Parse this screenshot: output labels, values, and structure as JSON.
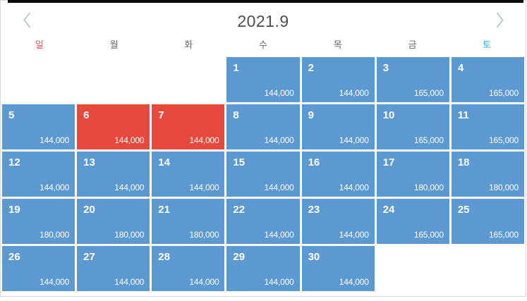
{
  "header": {
    "title": "2021.9",
    "prev_icon": "chevron-left",
    "next_icon": "chevron-right"
  },
  "weekdays": [
    {
      "label": "일",
      "color": "#ef4e5b"
    },
    {
      "label": "월",
      "color": "#666666"
    },
    {
      "label": "화",
      "color": "#666666"
    },
    {
      "label": "수",
      "color": "#666666"
    },
    {
      "label": "목",
      "color": "#666666"
    },
    {
      "label": "금",
      "color": "#666666"
    },
    {
      "label": "토",
      "color": "#29abe2"
    }
  ],
  "colors": {
    "cell_blue": "#5c99d1",
    "cell_selected_red": "#e7493c",
    "title_gray": "#4d4d4d",
    "chevron_gray": "#b7bdc6",
    "border_gray": "#d9d9d9"
  },
  "calendar": {
    "leading_blanks": 3,
    "trailing_blanks": 2,
    "days": [
      {
        "date": "1",
        "price": "144,000",
        "selected": false
      },
      {
        "date": "2",
        "price": "144,000",
        "selected": false
      },
      {
        "date": "3",
        "price": "165,000",
        "selected": false
      },
      {
        "date": "4",
        "price": "165,000",
        "selected": false
      },
      {
        "date": "5",
        "price": "144,000",
        "selected": false
      },
      {
        "date": "6",
        "price": "144,000",
        "selected": true
      },
      {
        "date": "7",
        "price": "144,000",
        "selected": true
      },
      {
        "date": "8",
        "price": "144,000",
        "selected": false
      },
      {
        "date": "9",
        "price": "144,000",
        "selected": false
      },
      {
        "date": "10",
        "price": "165,000",
        "selected": false
      },
      {
        "date": "11",
        "price": "165,000",
        "selected": false
      },
      {
        "date": "12",
        "price": "144,000",
        "selected": false
      },
      {
        "date": "13",
        "price": "144,000",
        "selected": false
      },
      {
        "date": "14",
        "price": "144,000",
        "selected": false
      },
      {
        "date": "15",
        "price": "144,000",
        "selected": false
      },
      {
        "date": "16",
        "price": "144,000",
        "selected": false
      },
      {
        "date": "17",
        "price": "180,000",
        "selected": false
      },
      {
        "date": "18",
        "price": "180,000",
        "selected": false
      },
      {
        "date": "19",
        "price": "180,000",
        "selected": false
      },
      {
        "date": "20",
        "price": "180,000",
        "selected": false
      },
      {
        "date": "21",
        "price": "180,000",
        "selected": false
      },
      {
        "date": "22",
        "price": "144,000",
        "selected": false
      },
      {
        "date": "23",
        "price": "144,000",
        "selected": false
      },
      {
        "date": "24",
        "price": "165,000",
        "selected": false
      },
      {
        "date": "25",
        "price": "165,000",
        "selected": false
      },
      {
        "date": "26",
        "price": "144,000",
        "selected": false
      },
      {
        "date": "27",
        "price": "144,000",
        "selected": false
      },
      {
        "date": "28",
        "price": "144,000",
        "selected": false
      },
      {
        "date": "29",
        "price": "144,000",
        "selected": false
      },
      {
        "date": "30",
        "price": "144,000",
        "selected": false
      }
    ]
  }
}
